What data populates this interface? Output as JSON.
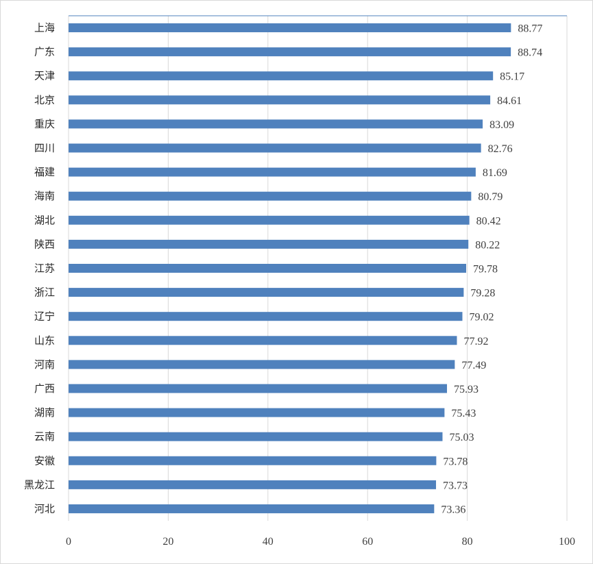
{
  "chart_data": {
    "type": "bar",
    "orientation": "horizontal",
    "title": "",
    "xlabel": "",
    "ylabel": "",
    "xlim": [
      0,
      100
    ],
    "x_ticks": [
      0,
      20,
      40,
      60,
      80,
      100
    ],
    "grid": "vertical",
    "bar_color": "#4f81bd",
    "categories": [
      "上海",
      "广东",
      "天津",
      "北京",
      "重庆",
      "四川",
      "福建",
      "海南",
      "湖北",
      "陕西",
      "江苏",
      "浙江",
      "辽宁",
      "山东",
      "河南",
      "广西",
      "湖南",
      "云南",
      "安徽",
      "黑龙江",
      "河北"
    ],
    "values": [
      88.77,
      88.74,
      85.17,
      84.61,
      83.09,
      82.76,
      81.69,
      80.79,
      80.42,
      80.22,
      79.78,
      79.28,
      79.02,
      77.92,
      77.49,
      75.93,
      75.43,
      75.03,
      73.78,
      73.73,
      73.36
    ],
    "value_labels": [
      "88.77",
      "88.74",
      "85.17",
      "84.61",
      "83.09",
      "82.76",
      "81.69",
      "80.79",
      "80.42",
      "80.22",
      "79.78",
      "79.28",
      "79.02",
      "77.92",
      "77.49",
      "75.93",
      "75.43",
      "75.03",
      "73.78",
      "73.73",
      "73.36"
    ]
  }
}
